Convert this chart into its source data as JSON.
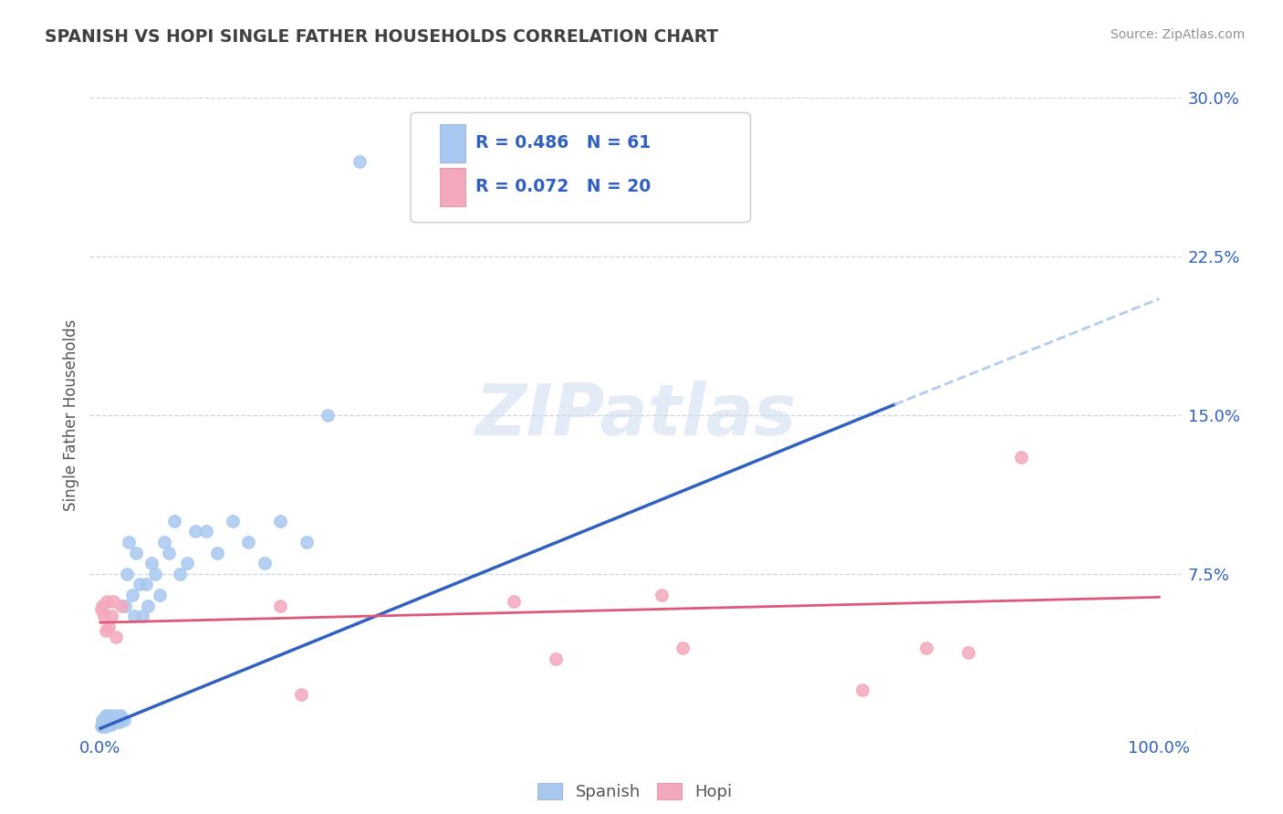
{
  "title": "SPANISH VS HOPI SINGLE FATHER HOUSEHOLDS CORRELATION CHART",
  "source_text": "Source: ZipAtlas.com",
  "ylabel": "Single Father Households",
  "xlim": [
    0,
    1.0
  ],
  "ylim": [
    0,
    0.3
  ],
  "yticks": [
    0.075,
    0.15,
    0.225,
    0.3
  ],
  "ytick_labels": [
    "7.5%",
    "15.0%",
    "22.5%",
    "30.0%"
  ],
  "xtick_labels": [
    "0.0%",
    "100.0%"
  ],
  "spanish_color": "#a8c8f0",
  "hopi_color": "#f4a8bc",
  "spanish_line_color": "#3060c0",
  "hopi_line_color": "#e05878",
  "trend_extend_color": "#b0ccee",
  "R_spanish": 0.486,
  "N_spanish": 61,
  "R_hopi": 0.072,
  "N_hopi": 20,
  "legend_text_color": "#3060c0",
  "title_color": "#404040",
  "source_color": "#909090",
  "background_color": "#ffffff",
  "grid_color": "#c8d4e8",
  "watermark": "ZIPatlas",
  "spanish_x": [
    0.001,
    0.002,
    0.002,
    0.003,
    0.003,
    0.003,
    0.004,
    0.004,
    0.005,
    0.005,
    0.005,
    0.006,
    0.006,
    0.007,
    0.007,
    0.008,
    0.008,
    0.009,
    0.009,
    0.01,
    0.01,
    0.011,
    0.012,
    0.013,
    0.014,
    0.015,
    0.015,
    0.016,
    0.017,
    0.018,
    0.019,
    0.02,
    0.022,
    0.023,
    0.025,
    0.027,
    0.03,
    0.032,
    0.034,
    0.037,
    0.04,
    0.043,
    0.045,
    0.048,
    0.052,
    0.056,
    0.06,
    0.065,
    0.07,
    0.075,
    0.082,
    0.09,
    0.1,
    0.11,
    0.125,
    0.14,
    0.155,
    0.17,
    0.195,
    0.215,
    0.245
  ],
  "spanish_y": [
    0.003,
    0.004,
    0.006,
    0.003,
    0.005,
    0.007,
    0.004,
    0.006,
    0.003,
    0.005,
    0.008,
    0.004,
    0.007,
    0.005,
    0.006,
    0.004,
    0.007,
    0.005,
    0.008,
    0.004,
    0.007,
    0.006,
    0.005,
    0.007,
    0.006,
    0.005,
    0.008,
    0.006,
    0.007,
    0.005,
    0.008,
    0.007,
    0.006,
    0.06,
    0.075,
    0.09,
    0.065,
    0.055,
    0.085,
    0.07,
    0.055,
    0.07,
    0.06,
    0.08,
    0.075,
    0.065,
    0.09,
    0.085,
    0.1,
    0.075,
    0.08,
    0.095,
    0.095,
    0.085,
    0.1,
    0.09,
    0.08,
    0.1,
    0.09,
    0.15,
    0.27
  ],
  "hopi_x": [
    0.001,
    0.002,
    0.003,
    0.005,
    0.006,
    0.008,
    0.01,
    0.012,
    0.015,
    0.02,
    0.17,
    0.19,
    0.39,
    0.43,
    0.53,
    0.55,
    0.72,
    0.78,
    0.82,
    0.87
  ],
  "hopi_y": [
    0.058,
    0.06,
    0.055,
    0.048,
    0.062,
    0.05,
    0.055,
    0.062,
    0.045,
    0.06,
    0.06,
    0.018,
    0.062,
    0.035,
    0.065,
    0.04,
    0.02,
    0.04,
    0.038,
    0.13
  ],
  "sp_trend_x0": 0.0,
  "sp_trend_y0": 0.002,
  "sp_trend_x1": 0.75,
  "sp_trend_y1": 0.155,
  "sp_trend_ext_x1": 1.0,
  "sp_trend_ext_y1": 0.205,
  "hp_trend_x0": 0.0,
  "hp_trend_y0": 0.052,
  "hp_trend_x1": 1.0,
  "hp_trend_y1": 0.064
}
